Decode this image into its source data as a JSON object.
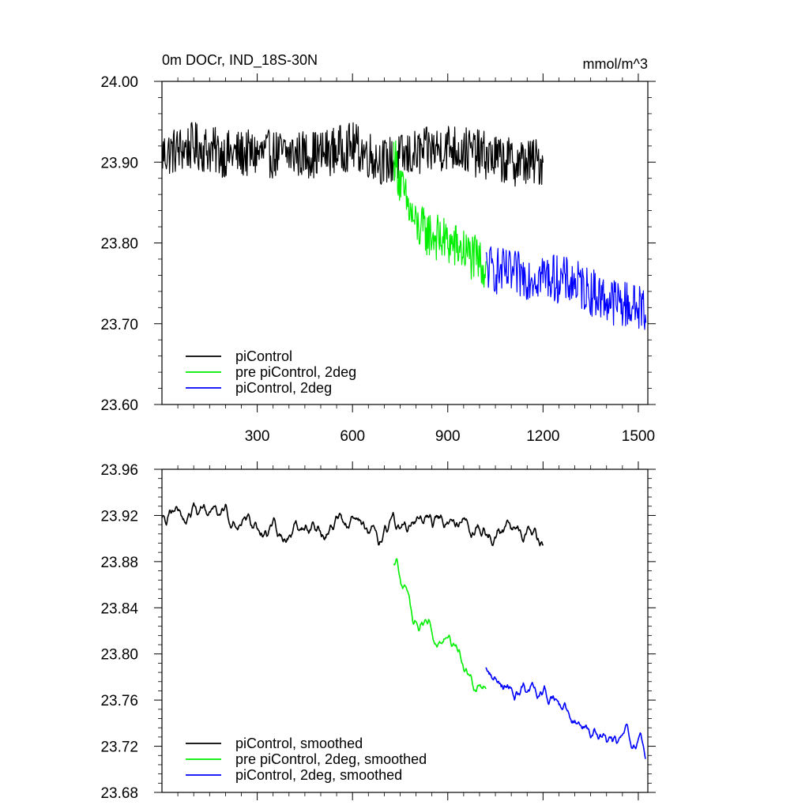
{
  "chart_data": [
    {
      "type": "line",
      "title": "0m DOCr, IND_18S-30N",
      "units": "mmol/m^3",
      "xlim": [
        0,
        1530
      ],
      "ylim": [
        23.6,
        24.0
      ],
      "xticks": [
        300,
        600,
        900,
        1200,
        1500
      ],
      "xtick_labels": [
        "300",
        "600",
        "900",
        "1200",
        "1500"
      ],
      "yticks": [
        23.6,
        23.7,
        23.8,
        23.9,
        24.0
      ],
      "ytick_labels": [
        "23.60",
        "23.70",
        "23.80",
        "23.90",
        "24.00"
      ],
      "grid": false,
      "legend_position": "bottom-left",
      "series": [
        {
          "name": "piControl",
          "color": "#000000",
          "x": [
            0,
            100,
            200,
            300,
            400,
            500,
            600,
            700,
            800,
            900,
            1000,
            1100,
            1200
          ],
          "y": [
            23.91,
            23.92,
            23.91,
            23.91,
            23.91,
            23.91,
            23.92,
            23.9,
            23.91,
            23.92,
            23.91,
            23.9,
            23.9
          ]
        },
        {
          "name": "pre piControl, 2deg",
          "color": "#00ee00",
          "x": [
            730,
            760,
            800,
            850,
            900,
            950,
            1020
          ],
          "y": [
            23.91,
            23.86,
            23.82,
            23.81,
            23.8,
            23.79,
            23.77
          ]
        },
        {
          "name": "piControl, 2deg",
          "color": "#0000ff",
          "x": [
            1020,
            1100,
            1200,
            1300,
            1400,
            1500,
            1525
          ],
          "y": [
            23.77,
            23.76,
            23.76,
            23.75,
            23.73,
            23.72,
            23.72
          ]
        }
      ]
    },
    {
      "type": "line",
      "xlim": [
        0,
        1530
      ],
      "ylim": [
        23.68,
        23.96
      ],
      "xticks": [
        300,
        600,
        900,
        1200,
        1500
      ],
      "yticks": [
        23.68,
        23.72,
        23.76,
        23.8,
        23.84,
        23.88,
        23.92,
        23.96
      ],
      "ytick_labels": [
        "23.68",
        "23.72",
        "23.76",
        "23.80",
        "23.84",
        "23.88",
        "23.92",
        "23.96"
      ],
      "grid": false,
      "legend_position": "bottom-left",
      "series": [
        {
          "name": "piControl, smoothed",
          "color": "#000000",
          "x": [
            0,
            100,
            200,
            300,
            400,
            500,
            600,
            700,
            800,
            900,
            1000,
            1100,
            1200
          ],
          "y": [
            23.92,
            23.925,
            23.92,
            23.91,
            23.905,
            23.91,
            23.915,
            23.9,
            23.915,
            23.92,
            23.91,
            23.905,
            23.9
          ]
        },
        {
          "name": "pre piControl, 2deg, smoothed",
          "color": "#00ee00",
          "x": [
            730,
            760,
            800,
            850,
            900,
            950,
            1020
          ],
          "y": [
            23.88,
            23.86,
            23.83,
            23.82,
            23.81,
            23.79,
            23.77
          ]
        },
        {
          "name": "piControl, 2deg, smoothed",
          "color": "#0000ff",
          "x": [
            1020,
            1100,
            1200,
            1300,
            1400,
            1500,
            1525
          ],
          "y": [
            23.79,
            23.77,
            23.765,
            23.745,
            23.725,
            23.72,
            23.715
          ]
        }
      ]
    }
  ]
}
